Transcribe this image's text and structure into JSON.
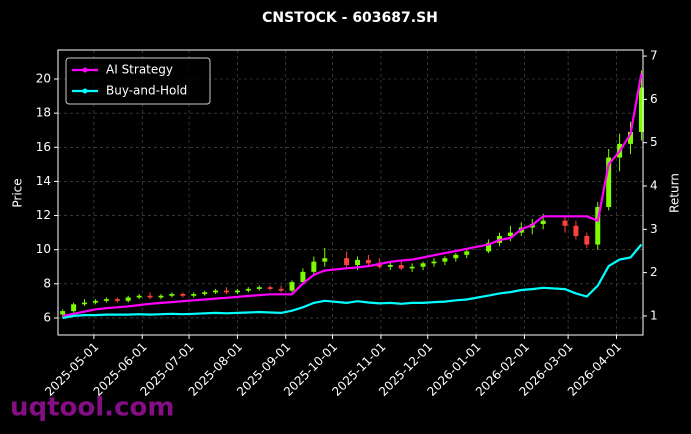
{
  "chart_data": {
    "type": "candlestick",
    "title": "CNSTOCK - 603687.SH",
    "ylabel": "Price",
    "y2label": "Return",
    "watermark": "uqtool.com",
    "x": [
      "2025-04-11",
      "2025-04-18",
      "2025-04-25",
      "2025-05-02",
      "2025-05-09",
      "2025-05-16",
      "2025-05-23",
      "2025-05-30",
      "2025-06-06",
      "2025-06-13",
      "2025-06-20",
      "2025-06-27",
      "2025-07-04",
      "2025-07-11",
      "2025-07-18",
      "2025-07-25",
      "2025-08-01",
      "2025-08-08",
      "2025-08-15",
      "2025-08-22",
      "2025-08-29",
      "2025-09-05",
      "2025-09-12",
      "2025-09-19",
      "2025-09-26",
      "2025-10-10",
      "2025-10-17",
      "2025-10-24",
      "2025-10-31",
      "2025-11-07",
      "2025-11-14",
      "2025-11-21",
      "2025-11-28",
      "2025-12-05",
      "2025-12-12",
      "2025-12-19",
      "2025-12-26",
      "2026-01-09",
      "2026-01-16",
      "2026-01-23",
      "2026-01-30",
      "2026-02-06",
      "2026-02-13",
      "2026-02-27",
      "2026-03-06",
      "2026-03-13",
      "2026-03-20",
      "2026-03-27",
      "2026-04-03",
      "2026-04-10",
      "2026-04-17"
    ],
    "open": [
      6.2,
      6.4,
      6.8,
      6.9,
      7.0,
      7.1,
      7.0,
      7.2,
      7.3,
      7.2,
      7.3,
      7.4,
      7.3,
      7.4,
      7.5,
      7.6,
      7.5,
      7.6,
      7.7,
      7.8,
      7.7,
      7.6,
      8.1,
      8.7,
      9.3,
      9.5,
      9.1,
      9.4,
      9.2,
      9.0,
      9.1,
      8.9,
      9.0,
      9.2,
      9.3,
      9.5,
      9.7,
      9.9,
      10.4,
      10.8,
      11.0,
      11.3,
      11.5,
      11.7,
      11.4,
      10.8,
      10.3,
      12.5,
      15.4,
      16.2,
      16.9
    ],
    "high": [
      6.5,
      6.9,
      7.1,
      7.1,
      7.2,
      7.2,
      7.3,
      7.4,
      7.5,
      7.4,
      7.5,
      7.5,
      7.5,
      7.6,
      7.7,
      7.8,
      7.7,
      7.8,
      7.9,
      7.9,
      7.9,
      8.2,
      8.9,
      9.6,
      10.1,
      9.9,
      9.6,
      9.7,
      9.5,
      9.3,
      9.4,
      9.2,
      9.3,
      9.5,
      9.6,
      9.8,
      10.0,
      10.6,
      11.0,
      11.4,
      11.6,
      11.8,
      12.1,
      12.0,
      11.7,
      11.0,
      12.8,
      15.9,
      16.8,
      17.5,
      20.5
    ],
    "low": [
      6.0,
      6.3,
      6.7,
      6.8,
      6.9,
      6.9,
      6.9,
      7.1,
      7.1,
      7.1,
      7.2,
      7.2,
      7.2,
      7.3,
      7.4,
      7.4,
      7.4,
      7.5,
      7.6,
      7.6,
      7.5,
      7.5,
      8.0,
      8.5,
      9.0,
      8.9,
      8.8,
      9.0,
      8.9,
      8.8,
      8.8,
      8.7,
      8.8,
      9.0,
      9.1,
      9.3,
      9.5,
      9.8,
      10.2,
      10.5,
      10.8,
      10.9,
      11.2,
      11.0,
      10.6,
      10.1,
      10.0,
      12.3,
      14.6,
      15.6,
      16.4
    ],
    "close": [
      6.4,
      6.8,
      6.9,
      7.0,
      7.1,
      7.0,
      7.2,
      7.3,
      7.2,
      7.3,
      7.4,
      7.3,
      7.4,
      7.5,
      7.6,
      7.5,
      7.6,
      7.7,
      7.8,
      7.7,
      7.6,
      8.1,
      8.7,
      9.3,
      9.5,
      9.1,
      9.4,
      9.2,
      9.0,
      9.1,
      8.9,
      9.0,
      9.2,
      9.3,
      9.5,
      9.7,
      9.9,
      10.4,
      10.8,
      11.0,
      11.3,
      11.5,
      11.7,
      11.4,
      10.8,
      10.3,
      12.5,
      15.4,
      16.2,
      16.9,
      19.5
    ],
    "up_color": "#7cfc00",
    "down_color": "#ff4040",
    "series": [
      {
        "name": "AI Strategy",
        "color": "#ff00ff",
        "axis": "y2",
        "values": [
          1.0,
          1.05,
          1.1,
          1.15,
          1.18,
          1.2,
          1.22,
          1.25,
          1.28,
          1.3,
          1.32,
          1.34,
          1.36,
          1.38,
          1.4,
          1.42,
          1.44,
          1.46,
          1.48,
          1.5,
          1.5,
          1.5,
          1.75,
          1.95,
          2.05,
          2.1,
          2.12,
          2.15,
          2.2,
          2.25,
          2.28,
          2.3,
          2.35,
          2.4,
          2.45,
          2.5,
          2.55,
          2.65,
          2.75,
          2.8,
          3.0,
          3.1,
          3.3,
          3.3,
          3.3,
          3.3,
          3.2,
          4.5,
          4.8,
          5.2,
          6.6
        ]
      },
      {
        "name": "Buy-and-Hold",
        "color": "#00ffff",
        "axis": "y2",
        "values": [
          0.95,
          1.0,
          1.02,
          1.02,
          1.03,
          1.03,
          1.03,
          1.04,
          1.03,
          1.04,
          1.05,
          1.04,
          1.05,
          1.06,
          1.07,
          1.06,
          1.07,
          1.08,
          1.09,
          1.08,
          1.07,
          1.12,
          1.2,
          1.3,
          1.35,
          1.3,
          1.34,
          1.31,
          1.29,
          1.3,
          1.28,
          1.3,
          1.3,
          1.32,
          1.33,
          1.36,
          1.38,
          1.47,
          1.52,
          1.55,
          1.6,
          1.62,
          1.65,
          1.62,
          1.52,
          1.45,
          1.7,
          2.15,
          2.3,
          2.35,
          2.65
        ]
      }
    ],
    "xlim": [
      "2025-04-08",
      "2026-04-18"
    ],
    "xticks": [
      "2025-05-01",
      "2025-06-01",
      "2025-07-01",
      "2025-08-01",
      "2025-09-01",
      "2025-10-01",
      "2025-11-01",
      "2025-12-01",
      "2026-01-01",
      "2026-02-01",
      "2026-03-01",
      "2026-04-01"
    ],
    "ylim": [
      5.0,
      21.7
    ],
    "yticks": [
      6,
      8,
      10,
      12,
      14,
      16,
      18,
      20
    ],
    "y2lim": [
      0.56,
      7.14
    ],
    "y2ticks": [
      1,
      2,
      3,
      4,
      5,
      6,
      7
    ],
    "grid": true,
    "legend": "upper-left"
  }
}
